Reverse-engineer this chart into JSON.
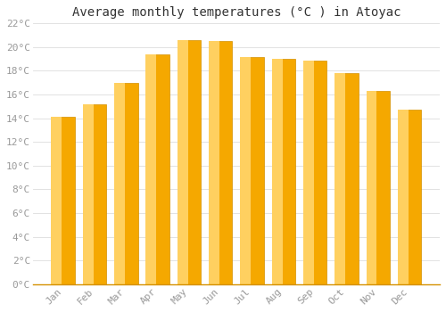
{
  "title": "Average monthly temperatures (°C ) in Atoyac",
  "months": [
    "Jan",
    "Feb",
    "Mar",
    "Apr",
    "May",
    "Jun",
    "Jul",
    "Aug",
    "Sep",
    "Oct",
    "Nov",
    "Dec"
  ],
  "values": [
    14.1,
    15.2,
    17.0,
    19.4,
    20.6,
    20.5,
    19.2,
    19.0,
    18.9,
    17.8,
    16.3,
    14.7
  ],
  "bar_color_light": "#FFD060",
  "bar_color_dark": "#F5A800",
  "bar_edge_color": "#D49000",
  "background_color": "#FFFFFF",
  "grid_color": "#DDDDDD",
  "text_color": "#999999",
  "ylim": [
    0,
    22
  ],
  "ytick_step": 2,
  "title_fontsize": 10,
  "tick_fontsize": 8,
  "font_family": "monospace"
}
